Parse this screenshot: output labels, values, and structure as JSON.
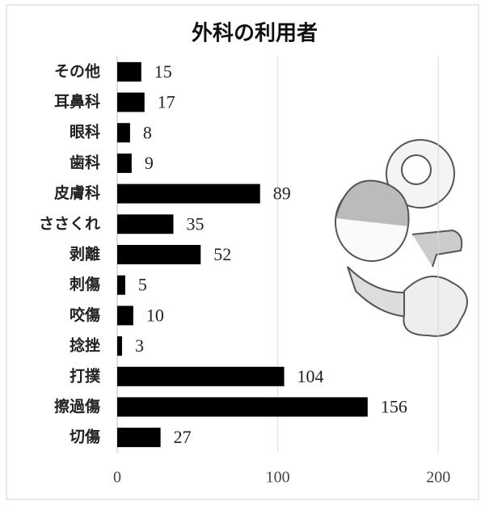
{
  "chart_data": {
    "type": "bar",
    "orientation": "horizontal",
    "title": "外科の利用者",
    "categories": [
      "その他",
      "耳鼻科",
      "眼科",
      "歯科",
      "皮膚科",
      "ささくれ",
      "剥離",
      "刺傷",
      "咬傷",
      "捻挫",
      "打撲",
      "擦過傷",
      "切傷"
    ],
    "values": [
      15,
      17,
      8,
      9,
      89,
      35,
      52,
      5,
      10,
      3,
      104,
      156,
      27
    ],
    "color": "#000000",
    "xlim": [
      0,
      215
    ],
    "xticks": [
      0,
      100,
      200
    ],
    "grid": true
  }
}
